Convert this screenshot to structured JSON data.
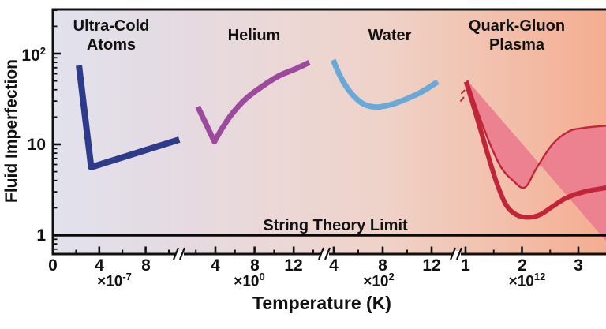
{
  "chart_data": {
    "type": "line",
    "xlabel": "Temperature (K)",
    "ylabel": "Fluid Imperfection",
    "y_axis": {
      "scale": "log",
      "range": [
        0.65,
        300
      ],
      "ticks": [
        {
          "value": 1,
          "label": "1",
          "sup": ""
        },
        {
          "value": 10,
          "label": "10",
          "sup": ""
        },
        {
          "value": 100,
          "label": "10",
          "sup": "2"
        }
      ]
    },
    "x_segments": [
      {
        "multiplier_base": "×10",
        "multiplier_sup": "-7",
        "major_values": [
          0,
          4,
          8
        ],
        "minor_values": [
          2,
          6,
          10
        ]
      },
      {
        "multiplier_base": "×10",
        "multiplier_sup": "0",
        "major_values": [
          4,
          8,
          12
        ],
        "minor_values": [
          2,
          6,
          10,
          14
        ]
      },
      {
        "multiplier_base": "×10",
        "multiplier_sup": "2",
        "major_values": [
          4,
          8,
          12
        ],
        "minor_values": [
          6,
          10
        ]
      },
      {
        "multiplier_base": "×10",
        "multiplier_sup": "12",
        "major_values": [
          1,
          2,
          3
        ],
        "minor_values": [
          1.5,
          2.5,
          3.5
        ]
      }
    ],
    "reference_line": {
      "label": "String Theory Limit",
      "value": 1,
      "color": "#0a0a0a"
    },
    "background_gradient": [
      "#e2e2ec",
      "#e4dbe3",
      "#ebd8d7",
      "#efd2c8",
      "#f2c1ad",
      "#f5ad90"
    ],
    "series": [
      {
        "name": "Ultra-Cold Atoms",
        "label_lines": [
          "Ultra-Cold",
          "Atoms"
        ],
        "segment": 0,
        "color": "#2e3a8a",
        "points": [
          [
            2.25,
            74
          ],
          [
            3.3,
            5.6
          ],
          [
            10.9,
            11.3
          ]
        ]
      },
      {
        "name": "Helium",
        "label_lines": [
          "Helium"
        ],
        "segment": 1,
        "color": "#9c4a9e",
        "points": [
          [
            2.2,
            26
          ],
          [
            3.9,
            10.7
          ],
          [
            4.6,
            14.5
          ],
          [
            5.6,
            21
          ],
          [
            7.0,
            31
          ],
          [
            8.7,
            43
          ],
          [
            10.5,
            57
          ],
          [
            12.2,
            68
          ],
          [
            13.6,
            80
          ]
        ]
      },
      {
        "name": "Water",
        "label_lines": [
          "Water"
        ],
        "segment": 2,
        "color": "#69a9d8",
        "points": [
          [
            3.95,
            85
          ],
          [
            4.6,
            54
          ],
          [
            5.4,
            37
          ],
          [
            6.4,
            28
          ],
          [
            7.5,
            25.8
          ],
          [
            8.7,
            27.5
          ],
          [
            9.9,
            31.5
          ],
          [
            11.2,
            38
          ],
          [
            12.5,
            49
          ]
        ]
      },
      {
        "name": "Quark-Gluon Plasma",
        "label_lines": [
          "Quark-Gluon",
          "Plasma"
        ],
        "segment": 3,
        "color": "#c1253a",
        "band_fill": "#ec8290",
        "points": [
          [
            1.01,
            49
          ],
          [
            1.19,
            21
          ],
          [
            1.37,
            8.7
          ],
          [
            1.55,
            3.8
          ],
          [
            1.72,
            2.15
          ],
          [
            1.9,
            1.68
          ],
          [
            2.11,
            1.57
          ],
          [
            2.32,
            1.68
          ],
          [
            2.54,
            2.06
          ],
          [
            2.75,
            2.5
          ],
          [
            2.96,
            2.83
          ],
          [
            3.24,
            3.13
          ],
          [
            3.6,
            3.4
          ]
        ],
        "band_upper": [
          [
            1.03,
            51
          ],
          [
            1.21,
            23.5
          ],
          [
            1.42,
            10.6
          ],
          [
            1.63,
            5.6
          ],
          [
            1.84,
            4.0
          ],
          [
            2.05,
            3.35
          ],
          [
            2.26,
            5.5
          ],
          [
            2.54,
            10
          ],
          [
            2.82,
            13.8
          ],
          [
            3.1,
            15.2
          ],
          [
            3.6,
            16.3
          ]
        ],
        "band_lower": [
          [
            1.0,
            49
          ],
          [
            1.14,
            21.3
          ],
          [
            1.31,
            8.7
          ],
          [
            1.49,
            3.5
          ],
          [
            1.67,
            1.82
          ],
          [
            1.84,
            1.17
          ],
          [
            1.98,
            0.96
          ],
          [
            2.15,
            0.82
          ],
          [
            2.38,
            0.755
          ],
          [
            2.69,
            0.725
          ],
          [
            3.6,
            0.72
          ]
        ]
      }
    ]
  }
}
